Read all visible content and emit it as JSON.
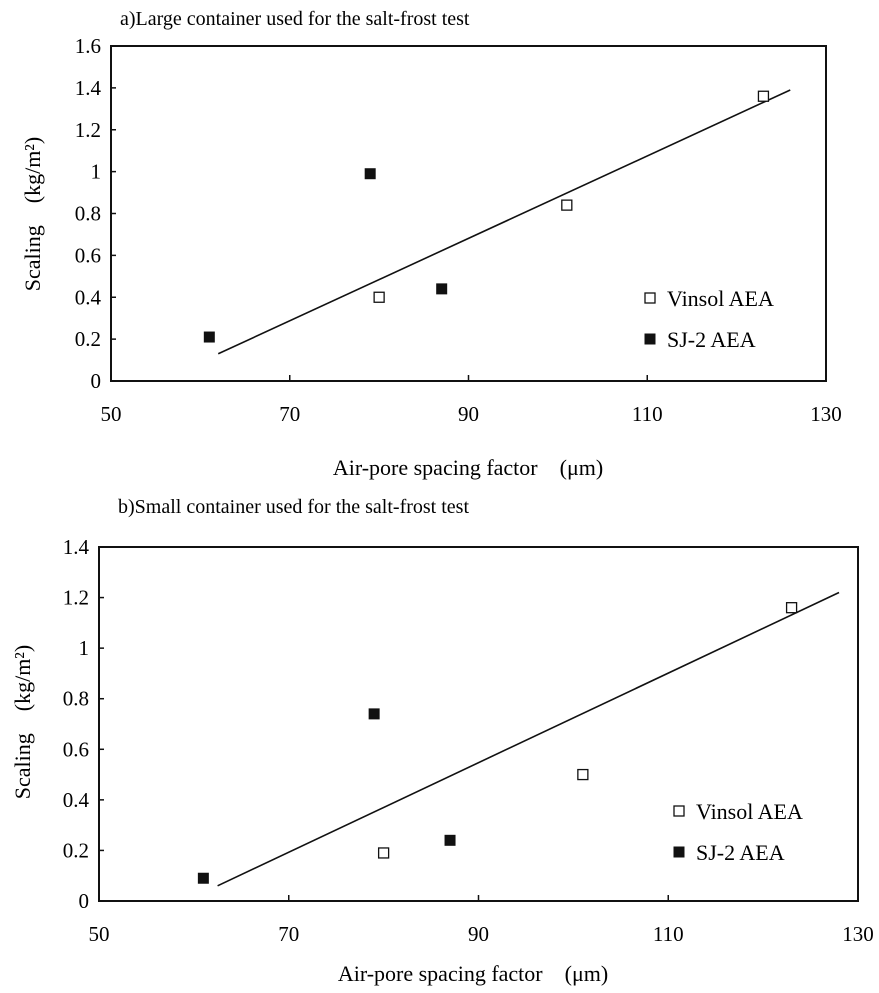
{
  "chart_data": [
    {
      "type": "scatter",
      "title": "a)Large container used for the salt-frost test",
      "xlabel": "Air-pore spacing factor　(μm)",
      "ylabel": "Scaling　(kg/m²)",
      "xlim": [
        50,
        130
      ],
      "ylim": [
        0,
        1.6
      ],
      "x_ticks": [
        "50",
        "70",
        "90",
        "110",
        "130"
      ],
      "y_ticks": [
        "0",
        "0.2",
        "0.4",
        "0.6",
        "0.8",
        "1",
        "1.2",
        "1.4",
        "1.6"
      ],
      "legend_position": "right",
      "series": [
        {
          "name": "Vinsol AEA",
          "marker": "open-square",
          "points": [
            [
              80,
              0.4
            ],
            [
              101,
              0.84
            ],
            [
              123,
              1.36
            ]
          ]
        },
        {
          "name": "SJ-2 AEA",
          "marker": "filled-square",
          "points": [
            [
              61,
              0.21
            ],
            [
              79,
              0.99
            ],
            [
              87,
              0.44
            ]
          ]
        }
      ],
      "trendline": [
        [
          62,
          0.13
        ],
        [
          126,
          1.39
        ]
      ]
    },
    {
      "type": "scatter",
      "title": "b)Small container used for the salt-frost test",
      "xlabel": "Air-pore spacing factor　(μm)",
      "ylabel": "Scaling　(kg/m²)",
      "xlim": [
        50,
        130
      ],
      "ylim": [
        0,
        1.4
      ],
      "x_ticks": [
        "50",
        "70",
        "90",
        "110",
        "130"
      ],
      "y_ticks": [
        "0",
        "0.2",
        "0.4",
        "0.6",
        "0.8",
        "1",
        "1.2",
        "1.4"
      ],
      "legend_position": "right",
      "series": [
        {
          "name": "Vinsol AEA",
          "marker": "open-square",
          "points": [
            [
              80,
              0.19
            ],
            [
              101,
              0.5
            ],
            [
              123,
              1.16
            ]
          ]
        },
        {
          "name": "SJ-2 AEA",
          "marker": "filled-square",
          "points": [
            [
              61,
              0.09
            ],
            [
              79,
              0.74
            ],
            [
              87,
              0.24
            ]
          ]
        }
      ],
      "trendline": [
        [
          62.5,
          0.06
        ],
        [
          128,
          1.22
        ]
      ]
    }
  ]
}
